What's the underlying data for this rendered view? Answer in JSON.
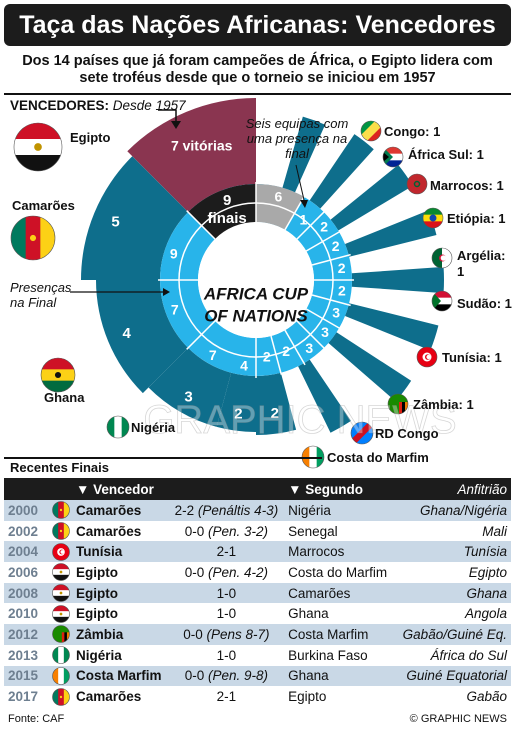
{
  "title": "Taça das Nações Africanas: Vencedores",
  "subtitle": "Dos 14 países que já foram campeões de África, o Egipto lidera com sete troféus desde que o torneio se iniciou em 1957",
  "winners_section": {
    "label": "VENCEDORES:",
    "since": "Desde 1957"
  },
  "center_label": {
    "line1": "AFRICA CUP",
    "line2": "OF NATIONS"
  },
  "finals_label": {
    "count": "9",
    "word": "finais"
  },
  "victories_label": "7 vitórias",
  "presencas_label": "Presenças na Final",
  "six_teams_note": "Seis equipas com uma presença na final",
  "watermark": "GRAPHIC NEWS",
  "countries": [
    {
      "name": "Egipto",
      "titles": 7,
      "finals": 9
    },
    {
      "name": "Camarões",
      "titles": 5,
      "finals": 7
    },
    {
      "name": "Ghana",
      "titles": 4,
      "finals": 9
    },
    {
      "name": "Nigéria",
      "titles": 3,
      "finals": 7
    },
    {
      "name": "Costa do Marfim",
      "titles": 2,
      "finals": 4
    },
    {
      "name": "RD Congo",
      "titles": 2,
      "finals": 2
    },
    {
      "name": "Zâmbia",
      "titles": 1,
      "finals": 3
    },
    {
      "name": "Tunísia",
      "titles": 1,
      "finals": 3
    },
    {
      "name": "Sudão",
      "titles": 1,
      "finals": 3
    },
    {
      "name": "Argélia",
      "titles": 1,
      "finals": 2
    },
    {
      "name": "Etiópia",
      "titles": 1,
      "finals": 2
    },
    {
      "name": "Marrocos",
      "titles": 1,
      "finals": 2
    },
    {
      "name": "África Sul",
      "titles": 1,
      "finals": 2
    },
    {
      "name": "Congo",
      "titles": 1,
      "finals": 1
    }
  ],
  "others_finals": "6",
  "country_labels": {
    "egipto": "Egipto",
    "camaroes": "Camarões",
    "ghana": "Ghana",
    "nigeria": "Nigéria",
    "costa": "Costa do Marfim",
    "rdcongo": "RD Congo",
    "zambia": "Zâmbia: 1",
    "tunisia": "Tunísia: 1",
    "sudao": "Sudão: 1",
    "argelia": "Argélia: 1",
    "etiopia": "Etiópia: 1",
    "marrocos": "Marrocos: 1",
    "africasul": "África Sul: 1",
    "congo": "Congo: 1"
  },
  "recent_finals": {
    "section_title": "Recentes Finais",
    "headers": {
      "winner": "Vencedor",
      "runner_up": "Segundo",
      "host": "Anfitrião"
    },
    "rows": [
      {
        "year": "2000",
        "winner": "Camarões",
        "score": "2-2",
        "score_note": "(Penáltis 4-3)",
        "runner_up": "Nigéria",
        "host": "Ghana/Nigéria",
        "flag": "cameroon"
      },
      {
        "year": "2002",
        "winner": "Camarões",
        "score": "0-0",
        "score_note": "(Pen. 3-2)",
        "runner_up": "Senegal",
        "host": "Mali",
        "flag": "cameroon"
      },
      {
        "year": "2004",
        "winner": "Tunísia",
        "score": "2-1",
        "score_note": "",
        "runner_up": "Marrocos",
        "host": "Tunísia",
        "flag": "tunisia"
      },
      {
        "year": "2006",
        "winner": "Egipto",
        "score": "0-0",
        "score_note": "(Pen. 4-2)",
        "runner_up": "Costa do Marfim",
        "host": "Egipto",
        "flag": "egypt"
      },
      {
        "year": "2008",
        "winner": "Egipto",
        "score": "1-0",
        "score_note": "",
        "runner_up": "Camarões",
        "host": "Ghana",
        "flag": "egypt"
      },
      {
        "year": "2010",
        "winner": "Egipto",
        "score": "1-0",
        "score_note": "",
        "runner_up": "Ghana",
        "host": "Angola",
        "flag": "egypt"
      },
      {
        "year": "2012",
        "winner": "Zâmbia",
        "score": "0-0",
        "score_note": "(Pens 8-7)",
        "runner_up": "Costa Marfim",
        "host": "Gabão/Guiné Eq.",
        "flag": "zambia"
      },
      {
        "year": "2013",
        "winner": "Nigéria",
        "score": "1-0",
        "score_note": "",
        "runner_up": "Burkina Faso",
        "host": "África do Sul",
        "flag": "nigeria"
      },
      {
        "year": "2015",
        "winner": "Costa Marfim",
        "score": "0-0",
        "score_note": "(Pen. 9-8)",
        "runner_up": "Ghana",
        "host": "Guiné Equatorial",
        "flag": "ivory"
      },
      {
        "year": "2017",
        "winner": "Camarões",
        "score": "2-1",
        "score_note": "",
        "runner_up": "Egipto",
        "host": "Gabão",
        "flag": "cameroon"
      }
    ]
  },
  "source": "Fonte: CAF",
  "credit": "© GRAPHIC NEWS",
  "colors": {
    "dark": "#1c1c1c",
    "teal": "#0e6e8c",
    "light_blue": "#28b4ea",
    "maroon": "#8a3550",
    "grey": "#a9a9a9",
    "row_alt": "#c9d8e6"
  }
}
